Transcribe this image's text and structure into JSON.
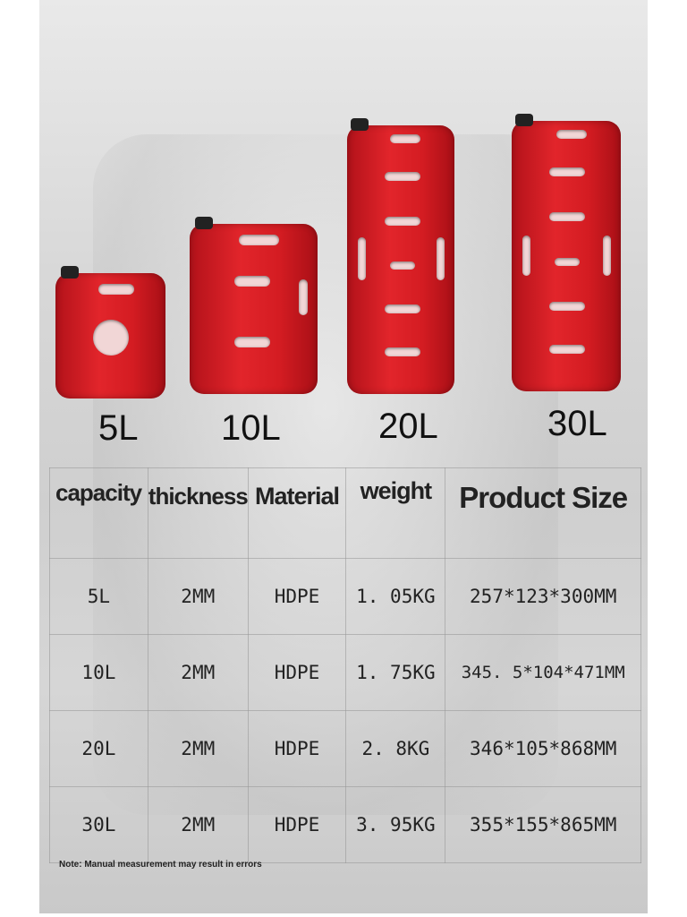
{
  "products": [
    {
      "label": "5L"
    },
    {
      "label": "10L"
    },
    {
      "label": "20L"
    },
    {
      "label": "30L"
    }
  ],
  "table": {
    "headers": [
      "capacity",
      "thickness",
      "Material",
      "weight",
      "Product Size"
    ],
    "rows": [
      [
        "5L",
        "2MM",
        "HDPE",
        "1. 05KG",
        "257*123*300MM"
      ],
      [
        "10L",
        "2MM",
        "HDPE",
        "1. 75KG",
        "345. 5*104*471MM"
      ],
      [
        "20L",
        "2MM",
        "HDPE",
        "2. 8KG",
        "346*105*868MM"
      ],
      [
        "30L",
        "2MM",
        "HDPE",
        "3. 95KG",
        "355*155*865MM"
      ]
    ]
  },
  "note": "Note: Manual measurement may result in errors",
  "colors": {
    "can": "#d41c22",
    "cap": "#222222"
  }
}
